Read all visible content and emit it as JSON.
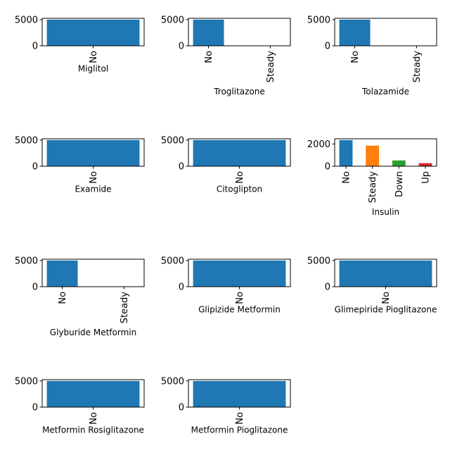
{
  "chart_data": [
    {
      "type": "bar",
      "xlabel": "Miglitol",
      "categories": [
        "No"
      ],
      "values": [
        5000
      ],
      "yticks": [
        0,
        5000
      ],
      "ylim": [
        0,
        5250
      ],
      "colors": [
        "#1f77b4"
      ]
    },
    {
      "type": "bar",
      "xlabel": "Troglitazone",
      "categories": [
        "No",
        "Steady"
      ],
      "values": [
        5000,
        0
      ],
      "yticks": [
        0,
        5000
      ],
      "ylim": [
        0,
        5250
      ],
      "colors": [
        "#1f77b4",
        "#ff7f0e"
      ]
    },
    {
      "type": "bar",
      "xlabel": "Tolazamide",
      "categories": [
        "No",
        "Steady"
      ],
      "values": [
        5000,
        0
      ],
      "yticks": [
        0,
        5000
      ],
      "ylim": [
        0,
        5250
      ],
      "colors": [
        "#1f77b4",
        "#ff7f0e"
      ]
    },
    {
      "type": "bar",
      "xlabel": "Examide",
      "categories": [
        "No"
      ],
      "values": [
        5000
      ],
      "yticks": [
        0,
        5000
      ],
      "ylim": [
        0,
        5250
      ],
      "colors": [
        "#1f77b4"
      ]
    },
    {
      "type": "bar",
      "xlabel": "Citoglipton",
      "categories": [
        "No"
      ],
      "values": [
        5000
      ],
      "yticks": [
        0,
        5000
      ],
      "ylim": [
        0,
        5250
      ],
      "colors": [
        "#1f77b4"
      ]
    },
    {
      "type": "bar",
      "xlabel": "Insulin",
      "categories": [
        "No",
        "Steady",
        "Down",
        "Up"
      ],
      "values": [
        2350,
        1850,
        520,
        280
      ],
      "yticks": [
        0,
        2000
      ],
      "ylim": [
        0,
        2470
      ],
      "colors": [
        "#1f77b4",
        "#ff7f0e",
        "#2ca02c",
        "#d62728"
      ]
    },
    {
      "type": "bar",
      "xlabel": "Glyburide Metformin",
      "categories": [
        "No",
        "Steady"
      ],
      "values": [
        4999,
        1
      ],
      "yticks": [
        0,
        5000
      ],
      "ylim": [
        0,
        5250
      ],
      "colors": [
        "#1f77b4",
        "#ff7f0e"
      ]
    },
    {
      "type": "bar",
      "xlabel": "Glipizide Metformin",
      "categories": [
        "No"
      ],
      "values": [
        5000
      ],
      "yticks": [
        0,
        5000
      ],
      "ylim": [
        0,
        5250
      ],
      "colors": [
        "#1f77b4"
      ]
    },
    {
      "type": "bar",
      "xlabel": "Glimepiride Pioglitazone",
      "categories": [
        "No"
      ],
      "values": [
        5000
      ],
      "yticks": [
        0,
        5000
      ],
      "ylim": [
        0,
        5250
      ],
      "colors": [
        "#1f77b4"
      ]
    },
    {
      "type": "bar",
      "xlabel": "Metformin Rosiglitazone",
      "categories": [
        "No"
      ],
      "values": [
        5000
      ],
      "yticks": [
        0,
        5000
      ],
      "ylim": [
        0,
        5250
      ],
      "colors": [
        "#1f77b4"
      ]
    },
    {
      "type": "bar",
      "xlabel": "Metformin Pioglitazone",
      "categories": [
        "No"
      ],
      "values": [
        5000
      ],
      "yticks": [
        0,
        5000
      ],
      "ylim": [
        0,
        5250
      ],
      "colors": [
        "#1f77b4"
      ]
    }
  ]
}
